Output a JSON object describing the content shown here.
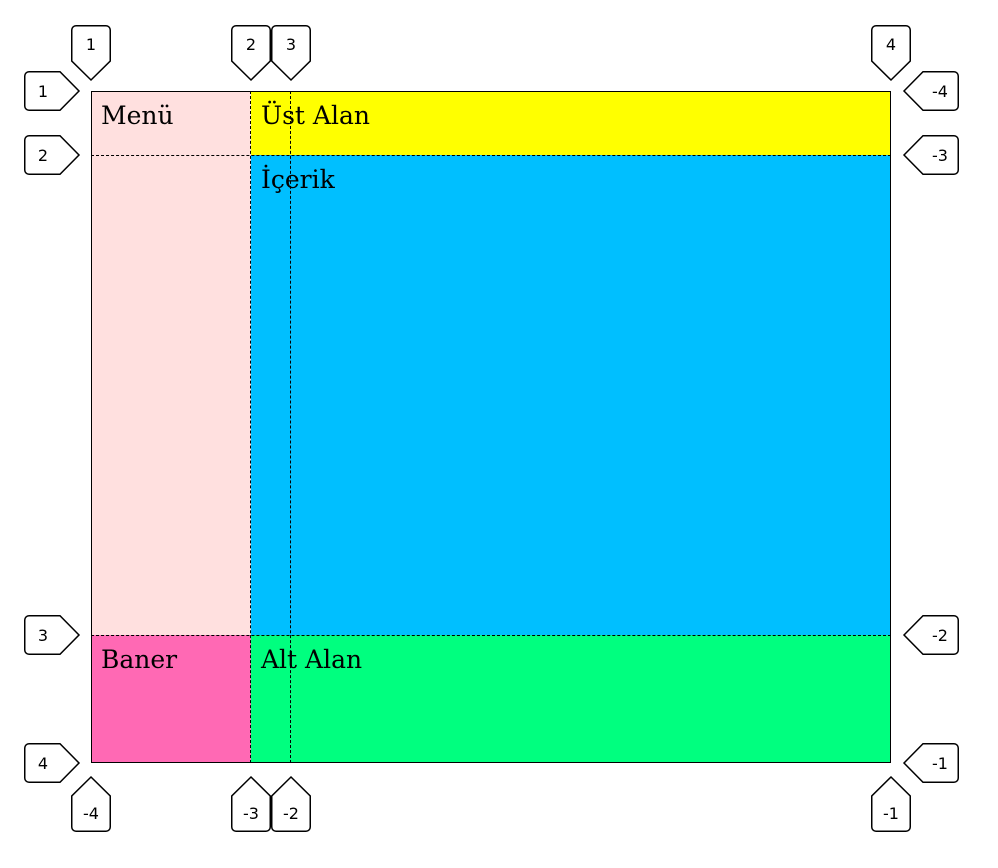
{
  "areas": {
    "menu": {
      "label": "Menü",
      "color": "#ffe0df"
    },
    "header": {
      "label": "Üst Alan",
      "color": "#ffff00"
    },
    "content": {
      "label": "İçerik",
      "color": "#00bfff"
    },
    "banner": {
      "label": "Baner",
      "color": "#ff69b4"
    },
    "footer": {
      "label": "Alt Alan",
      "color": "#00ff7f"
    }
  },
  "column_labels": {
    "top": [
      "1",
      "2",
      "3",
      "4"
    ],
    "bottom": [
      "-4",
      "-3",
      "-2",
      "-1"
    ]
  },
  "row_labels": {
    "left": [
      "1",
      "2",
      "3",
      "4"
    ],
    "right": [
      "-4",
      "-3",
      "-2",
      "-1"
    ]
  }
}
